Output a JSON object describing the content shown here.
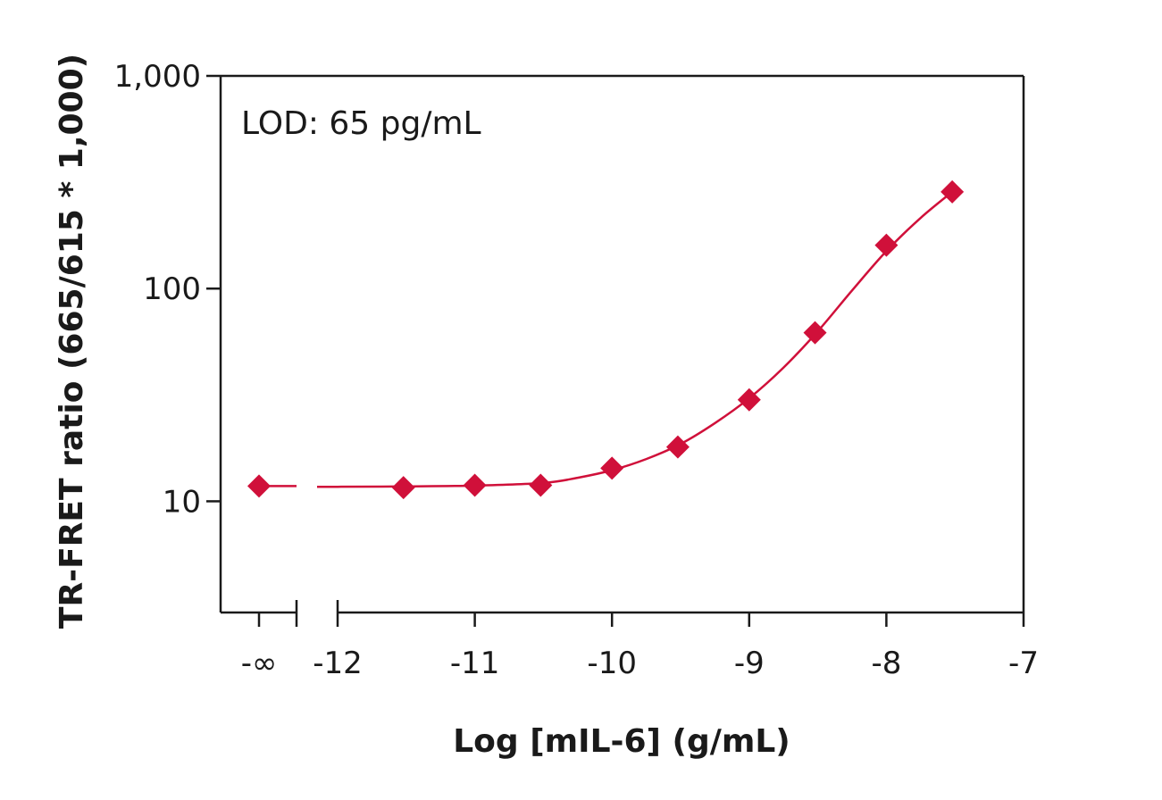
{
  "chart_data": {
    "type": "scatter",
    "xlabel": "Log [mIL-6] (g/mL)",
    "ylabel": "TR-FRET ratio (665/615 * 1,000)",
    "annotation": "LOD: 65 pg/mL",
    "y_scale": "log",
    "ylim": [
      3,
      1000
    ],
    "xlim": [
      -12.3,
      -7
    ],
    "x_ticks": [
      {
        "value": "-inf",
        "label": "-∞"
      },
      {
        "value": -12,
        "label": "-12"
      },
      {
        "value": -11,
        "label": "-11"
      },
      {
        "value": -10,
        "label": "-10"
      },
      {
        "value": -9,
        "label": "-9"
      },
      {
        "value": -8,
        "label": "-8"
      },
      {
        "value": -7,
        "label": "-7"
      }
    ],
    "y_ticks": [
      {
        "value": 10,
        "label": "10"
      },
      {
        "value": 100,
        "label": "100"
      },
      {
        "value": 1000,
        "label": "1,000"
      }
    ],
    "axis_break": true,
    "color": "#d0103a",
    "marker": "diamond",
    "series": [
      {
        "points": [
          {
            "x": "-inf",
            "y": 11.8
          },
          {
            "x": -11.52,
            "y": 11.6
          },
          {
            "x": -11.0,
            "y": 11.9
          },
          {
            "x": -10.52,
            "y": 11.9
          },
          {
            "x": -10.0,
            "y": 14.3
          },
          {
            "x": -9.52,
            "y": 18.0
          },
          {
            "x": -9.0,
            "y": 30.0
          },
          {
            "x": -8.52,
            "y": 62.0
          },
          {
            "x": -8.0,
            "y": 160.0
          },
          {
            "x": -7.52,
            "y": 285.0
          }
        ],
        "fit_curve": [
          {
            "x": "-inf",
            "y": 11.8
          },
          {
            "x": -12.0,
            "y": 11.7
          },
          {
            "x": -11.5,
            "y": 11.75
          },
          {
            "x": -11.0,
            "y": 11.85
          },
          {
            "x": -10.5,
            "y": 12.2
          },
          {
            "x": -10.25,
            "y": 12.9
          },
          {
            "x": -10.0,
            "y": 14.0
          },
          {
            "x": -9.75,
            "y": 15.8
          },
          {
            "x": -9.5,
            "y": 18.6
          },
          {
            "x": -9.25,
            "y": 23.3
          },
          {
            "x": -9.0,
            "y": 30.5
          },
          {
            "x": -8.75,
            "y": 42.5
          },
          {
            "x": -8.5,
            "y": 63.0
          },
          {
            "x": -8.25,
            "y": 98.0
          },
          {
            "x": -8.0,
            "y": 150.0
          },
          {
            "x": -7.75,
            "y": 215.0
          },
          {
            "x": -7.52,
            "y": 285.0
          }
        ]
      }
    ]
  }
}
